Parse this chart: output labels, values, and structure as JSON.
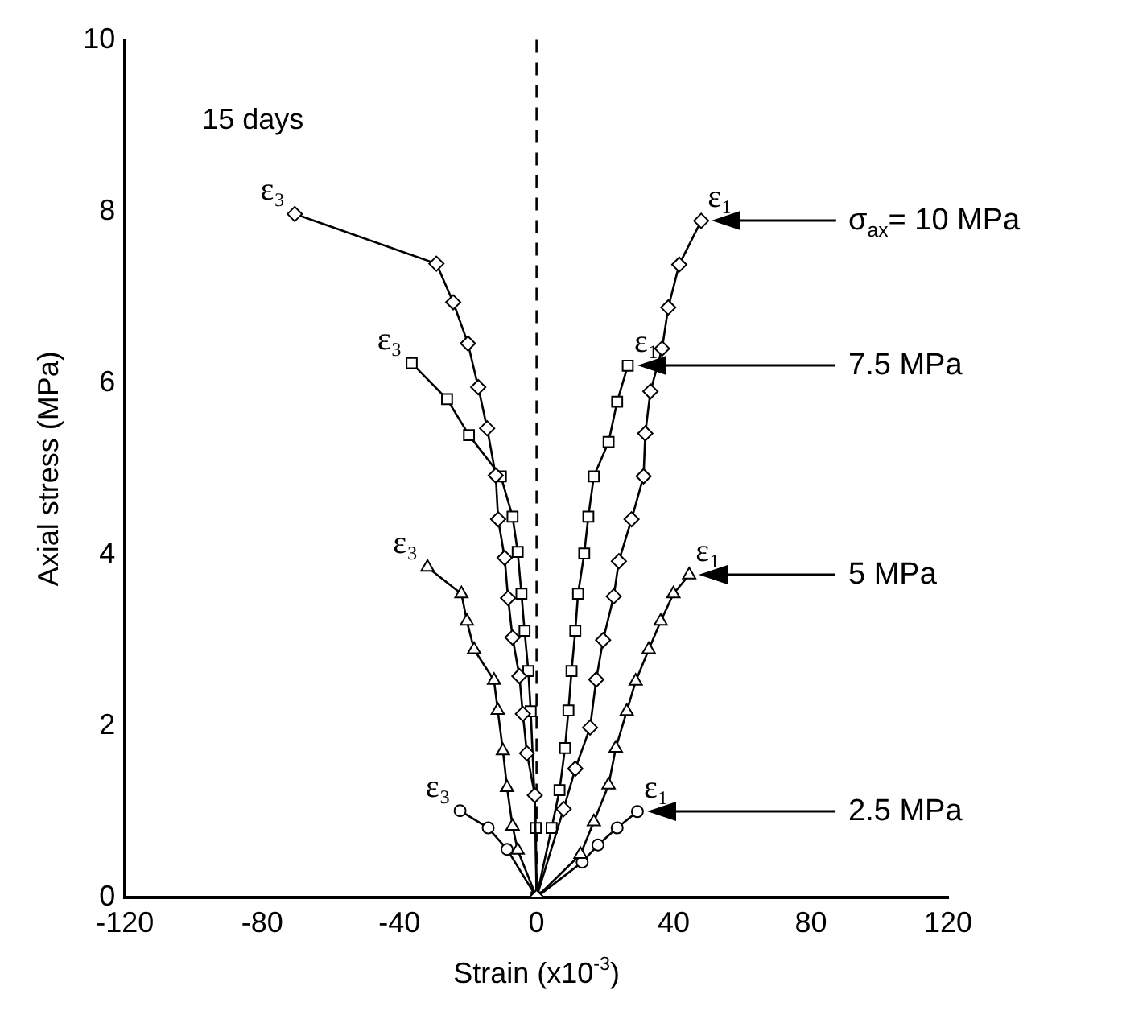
{
  "chart_data": {
    "type": "line",
    "xlabel": "Strain (x10$^{-3}$)",
    "ylabel": "Axial stress (MPa)",
    "xlim": [
      -120,
      120
    ],
    "xticks": [
      -120,
      -80,
      -40,
      0,
      40,
      80,
      120
    ],
    "ylim": [
      0,
      10
    ],
    "yticks": [
      0,
      2,
      4,
      6,
      8,
      10
    ],
    "grid": false,
    "legend": false,
    "line_style": "solid",
    "ref_lines": [
      {
        "axis": "x",
        "value": 0,
        "line_style": "dashed",
        "color": "#000000"
      }
    ],
    "series": [
      {
        "color": "#000000",
        "marker": "diamond",
        "x": [
          -70.5,
          -29.2,
          -24.3,
          -20.0,
          -17.0,
          -14.4,
          -11.9,
          -11.2,
          -9.3,
          -8.3,
          -7.0,
          -5.0,
          -4.0,
          -2.8,
          -0.5,
          0,
          7.9,
          11.3,
          15.6,
          17.4,
          19.4,
          22.5,
          24.0,
          27.7,
          31.2,
          31.7,
          33.2,
          36.6,
          38.4,
          41.6,
          48.0
        ],
        "values": [
          7.97,
          7.39,
          6.94,
          6.46,
          5.95,
          5.47,
          4.92,
          4.41,
          3.96,
          3.49,
          3.03,
          2.58,
          2.14,
          1.68,
          1.19,
          0,
          1.03,
          1.5,
          1.98,
          2.54,
          3.0,
          3.51,
          3.92,
          4.41,
          4.91,
          5.41,
          5.9,
          6.4,
          6.88,
          7.38,
          7.89
        ]
      },
      {
        "color": "#000000",
        "marker": "square",
        "x": [
          -36.4,
          -26.1,
          -19.7,
          -10.4,
          -7.0,
          -5.5,
          -4.4,
          -3.5,
          -2.4,
          -1.7,
          -0.2,
          0,
          4.4,
          6.7,
          8.3,
          9.3,
          10.2,
          11.3,
          12.1,
          13.9,
          15.1,
          16.7,
          21.0,
          23.5,
          26.6
        ],
        "values": [
          6.23,
          5.81,
          5.39,
          4.91,
          4.44,
          4.03,
          3.54,
          3.11,
          2.64,
          2.17,
          0.81,
          0,
          0.81,
          1.25,
          1.74,
          2.18,
          2.64,
          3.11,
          3.54,
          4.01,
          4.44,
          4.91,
          5.31,
          5.78,
          6.2
        ]
      },
      {
        "color": "#000000",
        "marker": "triangle",
        "x": [
          -31.8,
          -21.9,
          -20.3,
          -18.2,
          -12.4,
          -11.3,
          -9.8,
          -8.6,
          -7.0,
          -5.5,
          0,
          12.8,
          16.7,
          21.0,
          23.1,
          26.3,
          28.9,
          32.7,
          36.2,
          39.9,
          44.5
        ],
        "values": [
          3.85,
          3.54,
          3.22,
          2.89,
          2.53,
          2.18,
          1.71,
          1.28,
          0.83,
          0.55,
          0,
          0.5,
          0.88,
          1.31,
          1.74,
          2.17,
          2.52,
          2.89,
          3.22,
          3.54,
          3.76
        ]
      },
      {
        "color": "#000000",
        "marker": "circle",
        "x": [
          -22.3,
          -14.1,
          -8.6,
          0,
          13.3,
          17.9,
          23.5,
          29.4
        ],
        "values": [
          1.01,
          0.81,
          0.56,
          0,
          0.41,
          0.61,
          0.81,
          1.0
        ]
      }
    ],
    "annotations": [
      "15 days",
      {
        "text": "ε₃",
        "x": -70.5,
        "y": 7.97
      },
      {
        "text": "ε₃",
        "x": -36.4,
        "y": 6.23
      },
      {
        "text": "ε₃",
        "x": -31.8,
        "y": 3.85
      },
      {
        "text": "ε₃",
        "x": -22.3,
        "y": 1.01
      },
      {
        "text": "ε₁",
        "x": 48.0,
        "y": 7.89
      },
      {
        "text": "ε₁",
        "x": 26.6,
        "y": 6.2
      },
      {
        "text": "ε₁",
        "x": 44.5,
        "y": 3.76
      },
      {
        "text": "ε₁",
        "x": 29.4,
        "y": 1.0
      },
      "σ$_{ax}$= 10 MPa",
      "7.5 MPa",
      "5 MPa",
      "2.5 MPa"
    ]
  }
}
